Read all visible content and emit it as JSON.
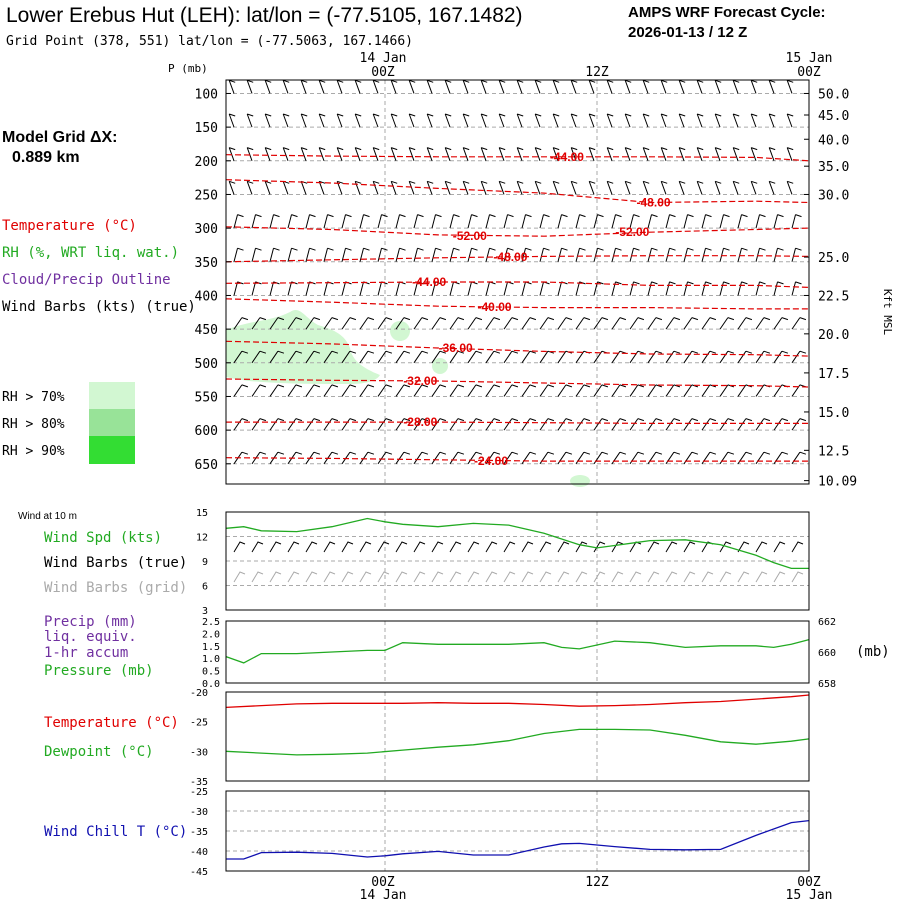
{
  "header": {
    "title": "Lower Erebus Hut (LEH):  lat/lon = (-77.5105, 167.1482)",
    "subtitle": "Grid Point (378, 551) lat/lon = (-77.5063, 167.1466)",
    "cycle_line1": "AMPS WRF Forecast Cycle:",
    "cycle_line2": "2026-01-13 / 12  Z"
  },
  "model_grid": {
    "label": "Model Grid ΔX:",
    "value": "0.889 km"
  },
  "time_axis": {
    "top_dates": [
      "14 Jan",
      "15 Jan"
    ],
    "labels": [
      "00Z",
      "12Z",
      "00Z"
    ],
    "bottom_dates": [
      "14 Jan",
      "15 Jan"
    ]
  },
  "colors": {
    "temperature": "#e00000",
    "rh": "#22aa22",
    "cloud": "#7030a0",
    "wind_grid": "#aaaaaa",
    "wind_chill": "#1010b0",
    "rh70": "#d2f7d2",
    "rh80": "#98e398",
    "rh90": "#33dd33"
  },
  "legend": {
    "temperature": "Temperature (°C)",
    "rh": "RH (%, WRT liq. wat.)",
    "cloud": "Cloud/Precip Outline",
    "wind": "Wind Barbs (kts) (true)",
    "rh70": "RH > 70%",
    "rh80": "RH > 80%",
    "rh90": "RH > 90%"
  },
  "panel2_labels": {
    "wind10m": "Wind at 10 m",
    "spd": "Wind Spd (kts)",
    "barbs_true": "Wind Barbs (true)",
    "barbs_grid": "Wind Barbs (grid)"
  },
  "panel3_labels": {
    "precip": "Precip (mm)",
    "liq": "liq. equiv.",
    "accum": "1-hr accum",
    "pressure": "Pressure (mb)",
    "unit": "(mb)"
  },
  "panel4_labels": {
    "temperature": "Temperature (°C)",
    "dewpoint": "Dewpoint (°C)"
  },
  "panel5_labels": {
    "windchill": "Wind Chill T (°C)"
  },
  "chart_data": [
    {
      "type": "line",
      "panel": "vertical cross-section",
      "ylabel": "P (mb)",
      "right_axis_label": "Kft MSL",
      "pressure_ticks": [
        100,
        150,
        200,
        250,
        300,
        350,
        400,
        450,
        500,
        550,
        600,
        650
      ],
      "pressure_range": [
        80,
        680
      ],
      "height_ticks": [
        {
          "p": 100,
          "label": "50.0"
        },
        {
          "p": 132,
          "label": "45.0"
        },
        {
          "p": 168,
          "label": "40.0"
        },
        {
          "p": 208,
          "label": "35.0"
        },
        {
          "p": 250,
          "label": "30.0"
        },
        {
          "p": 343,
          "label": "25.0"
        },
        {
          "p": 400,
          "label": "22.5"
        },
        {
          "p": 457,
          "label": "20.0"
        },
        {
          "p": 515,
          "label": "17.5"
        },
        {
          "p": 573,
          "label": "15.0"
        },
        {
          "p": 630,
          "label": "12.5"
        },
        {
          "p": 675,
          "label": "10.09"
        }
      ],
      "hours": [
        0,
        6,
        12,
        18,
        24,
        30,
        33
      ],
      "isotherms": [
        {
          "label": "-44.00",
          "t": 19.3,
          "p": 194,
          "points": [
            [
              0,
              191
            ],
            [
              6,
              193
            ],
            [
              12,
              194
            ],
            [
              18,
              194
            ],
            [
              24,
              194
            ],
            [
              30,
              195
            ],
            [
              33,
              200
            ]
          ]
        },
        {
          "label": "-48.00",
          "t": 24.2,
          "p": 262,
          "points": [
            [
              0,
              228
            ],
            [
              6,
              233
            ],
            [
              12,
              241
            ],
            [
              18,
              248
            ],
            [
              24,
              262
            ],
            [
              30,
              260
            ],
            [
              33,
              262
            ]
          ]
        },
        {
          "label": "-52.00",
          "t": 13.8,
          "p": 312,
          "points": [
            [
              0,
              298
            ],
            [
              6,
              302
            ],
            [
              12,
              310
            ],
            [
              18,
              312
            ],
            [
              24,
              306
            ],
            [
              30,
              302
            ],
            [
              33,
              300
            ]
          ]
        },
        {
          "label": "-52.00",
          "t": 23.0,
          "p": 306,
          "points": []
        },
        {
          "label": "-48.00",
          "t": 16.1,
          "p": 343,
          "points": [
            [
              0,
              350
            ],
            [
              6,
              347
            ],
            [
              12,
              344
            ],
            [
              18,
              342
            ],
            [
              24,
              341
            ],
            [
              30,
              341
            ],
            [
              33,
              342
            ]
          ]
        },
        {
          "label": "-44.00",
          "t": 11.5,
          "p": 380,
          "points": [
            [
              0,
              382
            ],
            [
              6,
              381
            ],
            [
              12,
              380
            ],
            [
              18,
              380
            ],
            [
              24,
              385
            ],
            [
              30,
              385
            ],
            [
              33,
              388
            ]
          ]
        },
        {
          "label": "-40.00",
          "t": 15.2,
          "p": 417,
          "points": [
            [
              0,
              405
            ],
            [
              6,
              410
            ],
            [
              12,
              416
            ],
            [
              18,
              418
            ],
            [
              24,
              418
            ],
            [
              30,
              420
            ],
            [
              33,
              420
            ]
          ]
        },
        {
          "label": "-36.00",
          "t": 13.0,
          "p": 478,
          "points": [
            [
              0,
              468
            ],
            [
              6,
              472
            ],
            [
              12,
              478
            ],
            [
              18,
              483
            ],
            [
              24,
              487
            ],
            [
              30,
              488
            ],
            [
              33,
              490
            ]
          ]
        },
        {
          "label": "-32.00",
          "t": 11.0,
          "p": 527,
          "points": [
            [
              0,
              524
            ],
            [
              6,
              526
            ],
            [
              12,
              527
            ],
            [
              18,
              530
            ],
            [
              24,
              533
            ],
            [
              30,
              534
            ],
            [
              33,
              536
            ]
          ]
        },
        {
          "label": "-28.00",
          "t": 11.0,
          "p": 588,
          "points": [
            [
              0,
              588
            ],
            [
              6,
              588
            ],
            [
              12,
              588
            ],
            [
              18,
              589
            ],
            [
              24,
              590
            ],
            [
              30,
              590
            ],
            [
              33,
              590
            ]
          ]
        },
        {
          "label": "-24.00",
          "t": 15.0,
          "p": 646,
          "points": [
            [
              0,
              641
            ],
            [
              6,
              642
            ],
            [
              12,
              644
            ],
            [
              18,
              646
            ],
            [
              24,
              646
            ],
            [
              30,
              646
            ],
            [
              33,
              646
            ]
          ]
        }
      ]
    },
    {
      "type": "line",
      "panel": "10 m wind speed",
      "series": [
        {
          "name": "Wind Spd (kts)",
          "x": [
            0,
            1,
            2,
            4,
            6,
            8,
            9,
            10,
            12,
            14,
            16,
            18,
            20,
            21,
            22,
            24,
            26,
            28,
            30,
            31,
            32,
            33
          ],
          "y": [
            13.0,
            13.2,
            12.7,
            12.6,
            13.2,
            14.2,
            13.8,
            13.5,
            13.2,
            13.6,
            13.4,
            12.4,
            11.0,
            10.6,
            10.9,
            11.5,
            11.6,
            11.0,
            9.7,
            8.8,
            8.1,
            8.1
          ]
        }
      ],
      "ylim": [
        3,
        15
      ],
      "yticks": [
        3,
        6,
        9,
        12,
        15
      ]
    },
    {
      "type": "line",
      "panel": "precip / pressure",
      "left_ticks": [
        "0.0",
        "0.5",
        "1.0",
        "1.5",
        "2.0",
        "2.5"
      ],
      "right_ticks": [
        "658",
        "660",
        "662"
      ],
      "series": [
        {
          "name": "Pressure (mb)",
          "x": [
            0,
            1,
            2,
            4,
            6,
            8,
            9,
            10,
            12,
            14,
            16,
            18,
            19,
            20,
            22,
            24,
            26,
            28,
            30,
            31,
            32,
            33
          ],
          "y": [
            659.7,
            659.3,
            659.9,
            659.9,
            660.0,
            660.1,
            660.1,
            660.6,
            660.5,
            660.5,
            660.5,
            660.6,
            660.3,
            660.2,
            660.7,
            660.6,
            660.3,
            660.4,
            660.4,
            660.3,
            660.5,
            660.8
          ]
        }
      ],
      "ylim": [
        658,
        662
      ]
    },
    {
      "type": "line",
      "panel": "temperature / dewpoint",
      "series": [
        {
          "name": "Temperature (°C)",
          "x": [
            0,
            2,
            4,
            6,
            8,
            10,
            12,
            14,
            16,
            18,
            20,
            22,
            24,
            26,
            28,
            30,
            32,
            33
          ],
          "y": [
            -22.6,
            -22.3,
            -22.0,
            -21.9,
            -21.9,
            -21.9,
            -21.8,
            -21.9,
            -21.9,
            -22.1,
            -22.4,
            -22.3,
            -22.1,
            -21.8,
            -21.6,
            -21.2,
            -20.8,
            -20.5
          ]
        },
        {
          "name": "Dewpoint (°C)",
          "x": [
            0,
            2,
            4,
            6,
            8,
            10,
            12,
            14,
            16,
            18,
            20,
            22,
            24,
            26,
            28,
            30,
            32,
            33
          ],
          "y": [
            -30.0,
            -30.3,
            -30.6,
            -30.5,
            -30.3,
            -29.8,
            -29.3,
            -28.9,
            -28.2,
            -27.0,
            -26.3,
            -26.3,
            -26.4,
            -27.3,
            -28.4,
            -28.8,
            -28.3,
            -27.9
          ]
        }
      ],
      "ylim": [
        -35,
        -20
      ],
      "yticks": [
        -35,
        -30,
        -25,
        -20
      ]
    },
    {
      "type": "line",
      "panel": "wind chill",
      "series": [
        {
          "name": "Wind Chill T (°C)",
          "x": [
            0,
            1,
            2,
            4,
            6,
            8,
            9,
            10,
            12,
            14,
            16,
            18,
            19,
            20,
            22,
            24,
            26,
            28,
            30,
            32,
            33
          ],
          "y": [
            -42.0,
            -42.0,
            -40.4,
            -40.3,
            -40.6,
            -41.5,
            -41.2,
            -40.7,
            -40.1,
            -41.0,
            -41.0,
            -39.0,
            -38.2,
            -38.1,
            -38.9,
            -39.6,
            -39.7,
            -39.6,
            -36.1,
            -32.9,
            -32.4
          ]
        }
      ],
      "ylim": [
        -45,
        -25
      ],
      "yticks": [
        -45,
        -40,
        -35,
        -30,
        -25
      ]
    }
  ]
}
